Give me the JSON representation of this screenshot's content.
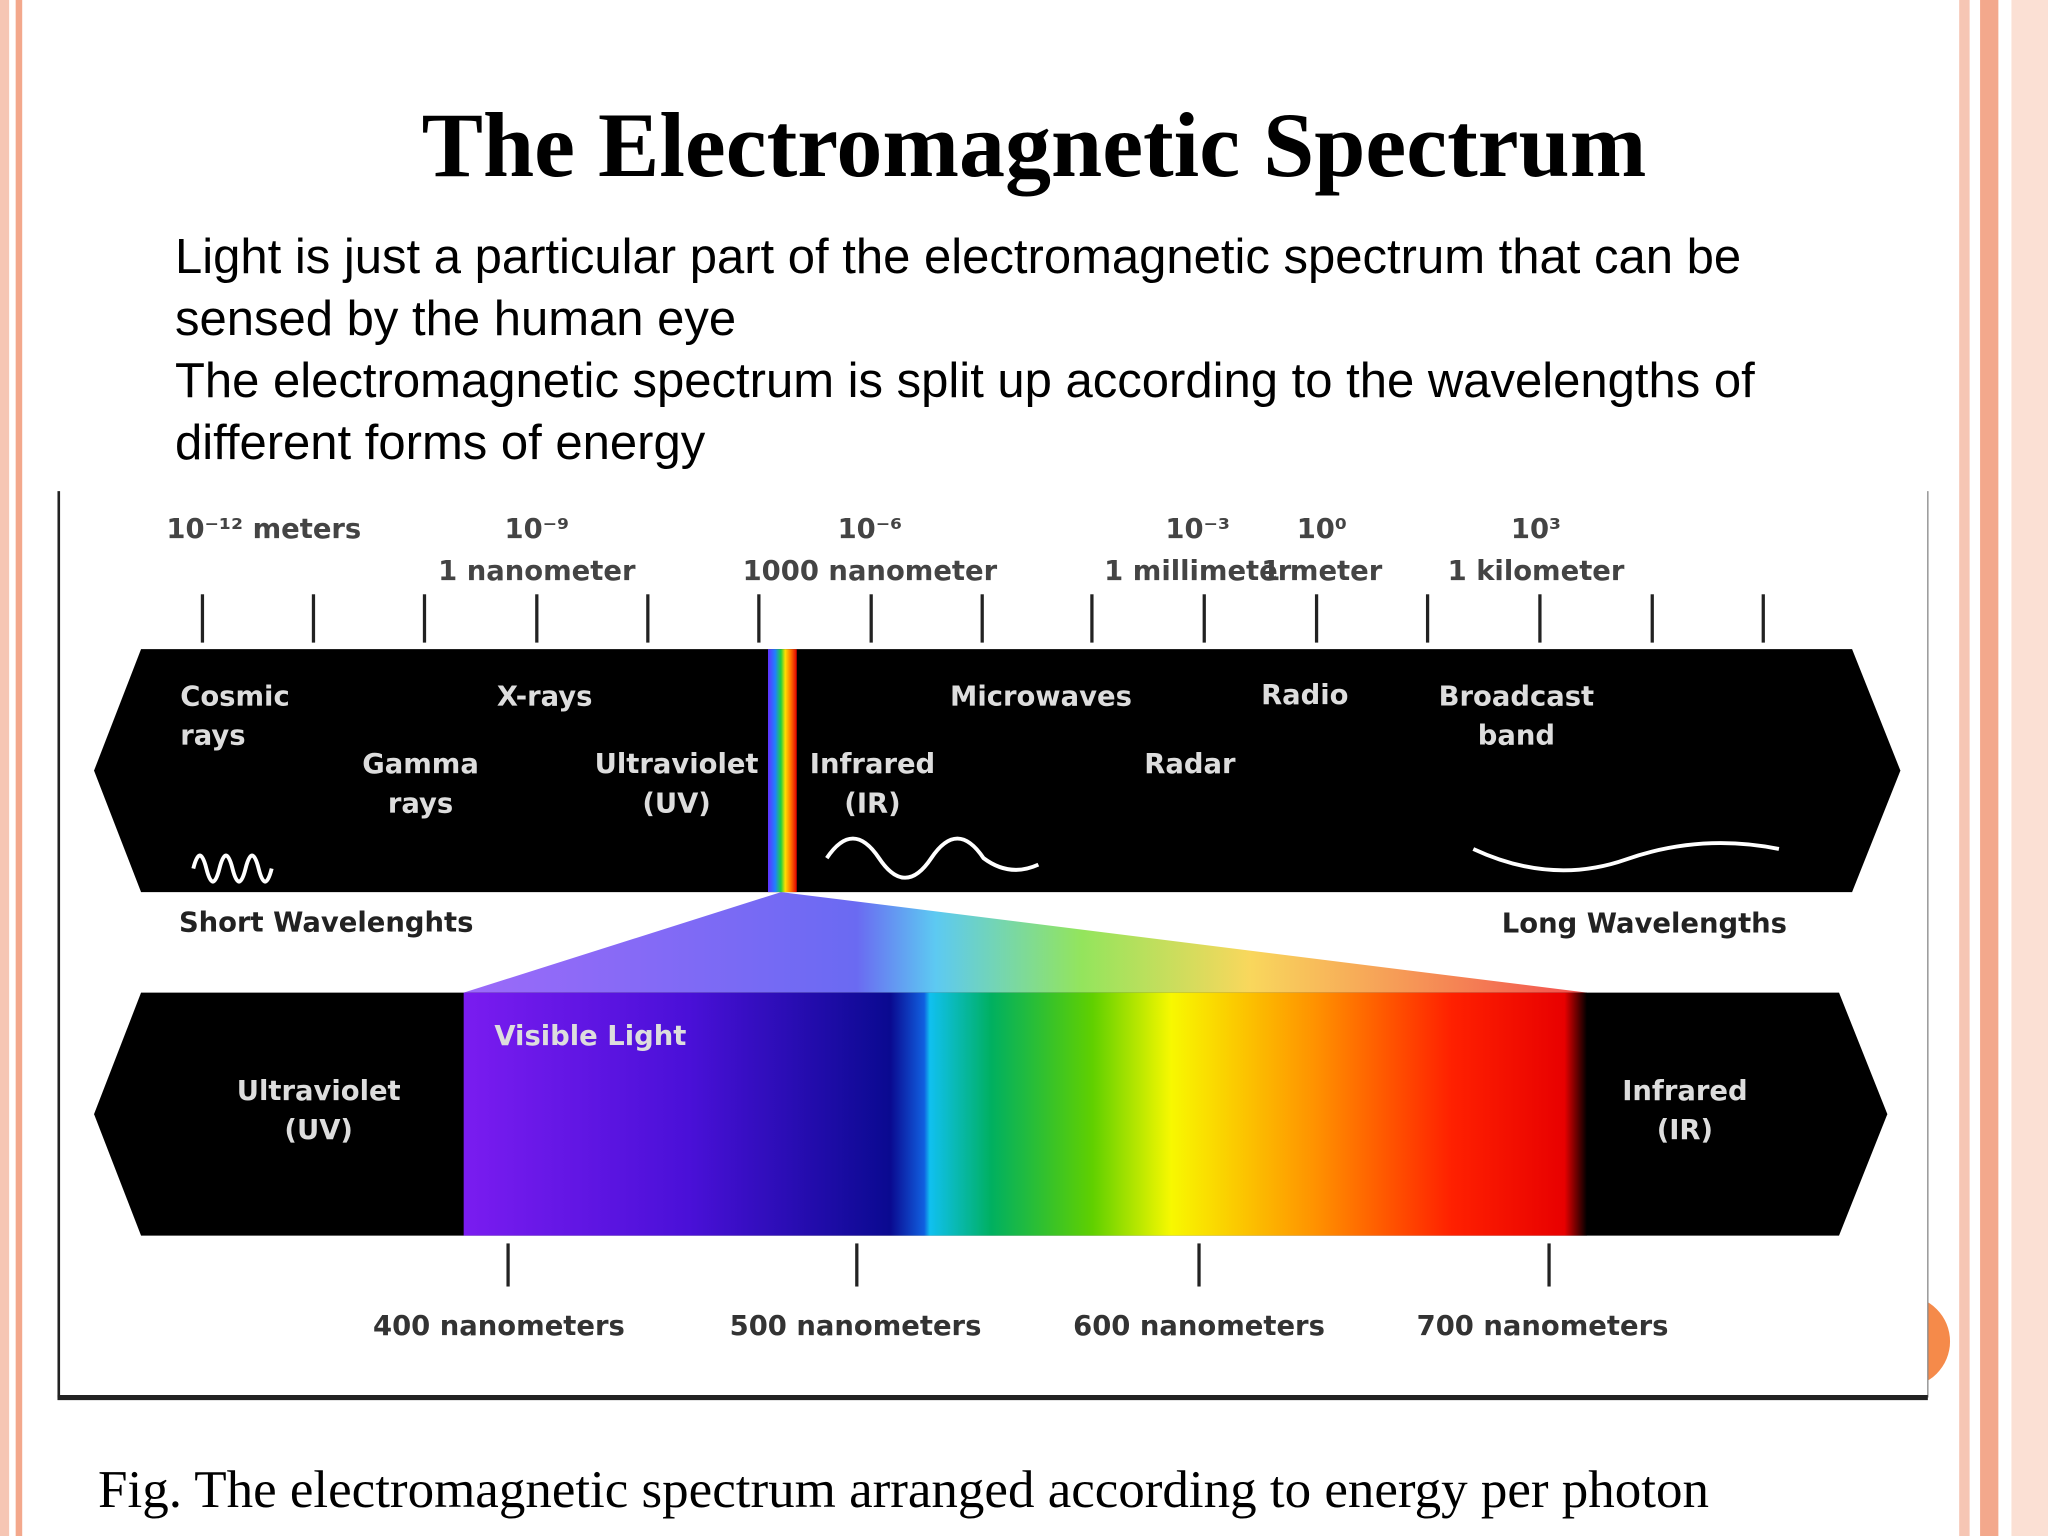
{
  "title": "The Electromagnetic Spectrum",
  "bullets": [
    "Light is just a particular part of the electromagnetic spectrum that can be sensed by the human eye",
    "The electromagnetic spectrum is split up according to the wavelengths of different forms of energy"
  ],
  "diagram": {
    "scale": [
      {
        "power": "10⁻¹² meters"
      },
      {
        "power": "10⁻⁹",
        "name": "1 nanometer"
      },
      {
        "power": "10⁻⁶",
        "name": "1000 nanometer"
      },
      {
        "power": "10⁻³",
        "name": "1 millimeter"
      },
      {
        "power": "10⁰",
        "name": "1 meter"
      },
      {
        "power": "10³",
        "name": "1 kilometer"
      }
    ],
    "bands": [
      {
        "lines": [
          "Cosmic",
          "rays"
        ]
      },
      {
        "lines": [
          "X-rays"
        ]
      },
      {
        "lines": [
          "Gamma",
          "rays"
        ]
      },
      {
        "lines": [
          "Ultraviolet",
          "(UV)"
        ]
      },
      {
        "lines": [
          "Infrared",
          "(IR)"
        ]
      },
      {
        "lines": [
          "Microwaves"
        ]
      },
      {
        "lines": [
          "Radar"
        ]
      },
      {
        "lines": [
          "Radio"
        ]
      },
      {
        "lines": [
          "Broadcast",
          "band"
        ]
      }
    ],
    "short_label": "Short Wavelenghts",
    "long_label": "Long Wavelengths",
    "visible_label": "Visible Light",
    "left_band": {
      "lines": [
        "Ultraviolet",
        "(UV)"
      ]
    },
    "right_band": {
      "lines": [
        "Infrared",
        "(IR)"
      ]
    },
    "nm_labels": [
      "400 nanometers",
      "500 nanometers",
      "600 nanometers",
      "700 nanometers"
    ]
  },
  "caption": "Fig. The electromagnetic spectrum arranged according to energy per photon"
}
